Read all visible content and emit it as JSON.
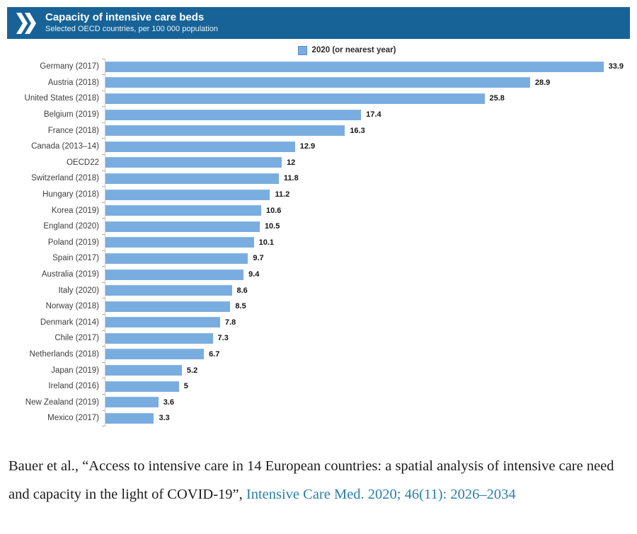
{
  "header": {
    "title": "Capacity of intensive care beds",
    "subtitle": "Selected OECD countries, per 100 000 population",
    "bg_color": "#176398",
    "chevron_icon": "oecd-double-chevron"
  },
  "legend": {
    "label": "2020 (or nearest year)",
    "swatch_color": "#79addf"
  },
  "chart_data": {
    "type": "bar",
    "orientation": "horizontal",
    "title": "Capacity of intensive care beds",
    "subtitle": "Selected OECD countries, per 100 000 population",
    "legend_entries": [
      "2020 (or nearest year)"
    ],
    "legend_position": "top-center",
    "bar_color": "#79addf",
    "grid": false,
    "value_labels": true,
    "xlim": [
      0,
      35.7
    ],
    "categories": [
      "Germany (2017)",
      "Austria (2018)",
      "United States (2018)",
      "Belgium (2019)",
      "France (2018)",
      "Canada (2013–14)",
      "OECD22",
      "Switzerland (2018)",
      "Hungary (2018)",
      "Korea (2019)",
      "England (2020)",
      "Poland (2019)",
      "Spain (2017)",
      "Australia (2019)",
      "Italy (2020)",
      "Norway (2018)",
      "Denmark (2014)",
      "Chile (2017)",
      "Netherlands (2018)",
      "Japan (2019)",
      "Ireland (2016)",
      "New Zealand (2019)",
      "Mexico (2017)"
    ],
    "values": [
      33.9,
      28.9,
      25.8,
      17.4,
      16.3,
      12.9,
      12,
      11.8,
      11.2,
      10.6,
      10.5,
      10.1,
      9.7,
      9.4,
      8.6,
      8.5,
      7.8,
      7.3,
      6.7,
      5.2,
      5,
      3.6,
      3.3
    ]
  },
  "citation": {
    "text": "Bauer et al., “Access to intensive care in 14 European countries: a spatial analysis of intensive care need and capacity in the light of COVID-19”, ",
    "link": "Intensive Care Med. 2020; 46(11): 2026–2034",
    "link_color": "#2a7fa9"
  }
}
